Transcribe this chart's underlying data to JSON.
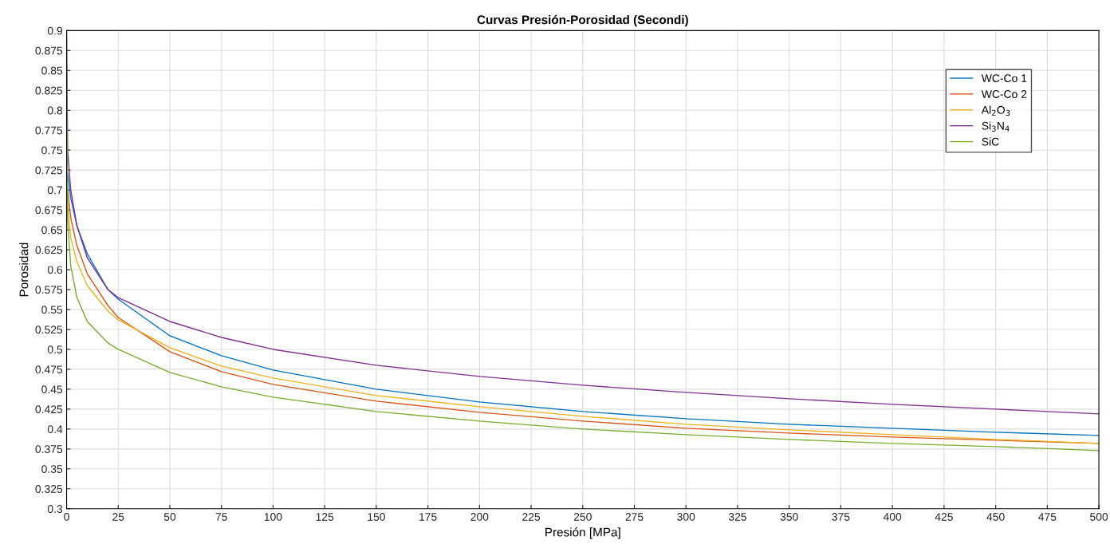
{
  "chart_data": {
    "type": "line",
    "title": "Curvas Presión-Porosidad (Secondi)",
    "xlabel": "Presión [MPa]",
    "ylabel": "Porosidad",
    "xlim": [
      0,
      500
    ],
    "ylim": [
      0.3,
      0.9
    ],
    "xticks": [
      0,
      25,
      50,
      75,
      100,
      125,
      150,
      175,
      200,
      225,
      250,
      275,
      300,
      325,
      350,
      375,
      400,
      425,
      450,
      475,
      500
    ],
    "yticks": [
      0.3,
      0.325,
      0.35,
      0.375,
      0.4,
      0.425,
      0.45,
      0.475,
      0.5,
      0.525,
      0.55,
      0.575,
      0.6,
      0.625,
      0.65,
      0.675,
      0.7,
      0.725,
      0.75,
      0.775,
      0.8,
      0.825,
      0.85,
      0.875,
      0.9
    ],
    "grid": true,
    "legend": "top right",
    "marker": "none",
    "line_style": "solid",
    "x": [
      0,
      0.5,
      2,
      5,
      10,
      20,
      25,
      50,
      75,
      100,
      150,
      200,
      250,
      300,
      350,
      400,
      450,
      500
    ],
    "series": [
      {
        "name": "WC-Co 1",
        "color": "#0072bd",
        "values": [
          0.732,
          0.72,
          0.69,
          0.655,
          0.62,
          0.575,
          0.563,
          0.517,
          0.492,
          0.474,
          0.45,
          0.434,
          0.422,
          0.413,
          0.406,
          0.401,
          0.396,
          0.392
        ]
      },
      {
        "name": "WC-Co 2",
        "color": "#d95319",
        "values": [
          0.72,
          0.7,
          0.665,
          0.63,
          0.595,
          0.555,
          0.54,
          0.497,
          0.472,
          0.456,
          0.435,
          0.421,
          0.41,
          0.401,
          0.395,
          0.39,
          0.386,
          0.382
        ]
      },
      {
        "name": "Al$_{2}$O$_{3}$",
        "color": "#edb120",
        "values": [
          0.7,
          0.68,
          0.64,
          0.61,
          0.58,
          0.548,
          0.537,
          0.502,
          0.479,
          0.464,
          0.442,
          0.428,
          0.416,
          0.406,
          0.399,
          0.393,
          0.387,
          0.382
        ]
      },
      {
        "name": "Si$_{3}$N$_{4}$",
        "color": "#7e2f8e",
        "values": [
          0.9,
          0.75,
          0.7,
          0.655,
          0.615,
          0.575,
          0.565,
          0.535,
          0.515,
          0.5,
          0.48,
          0.466,
          0.455,
          0.446,
          0.438,
          0.431,
          0.425,
          0.419
        ]
      },
      {
        "name": "SiC",
        "color": "#77ac30",
        "values": [
          0.85,
          0.66,
          0.605,
          0.565,
          0.535,
          0.508,
          0.5,
          0.471,
          0.453,
          0.44,
          0.422,
          0.41,
          0.4,
          0.393,
          0.387,
          0.382,
          0.378,
          0.373
        ]
      }
    ]
  }
}
